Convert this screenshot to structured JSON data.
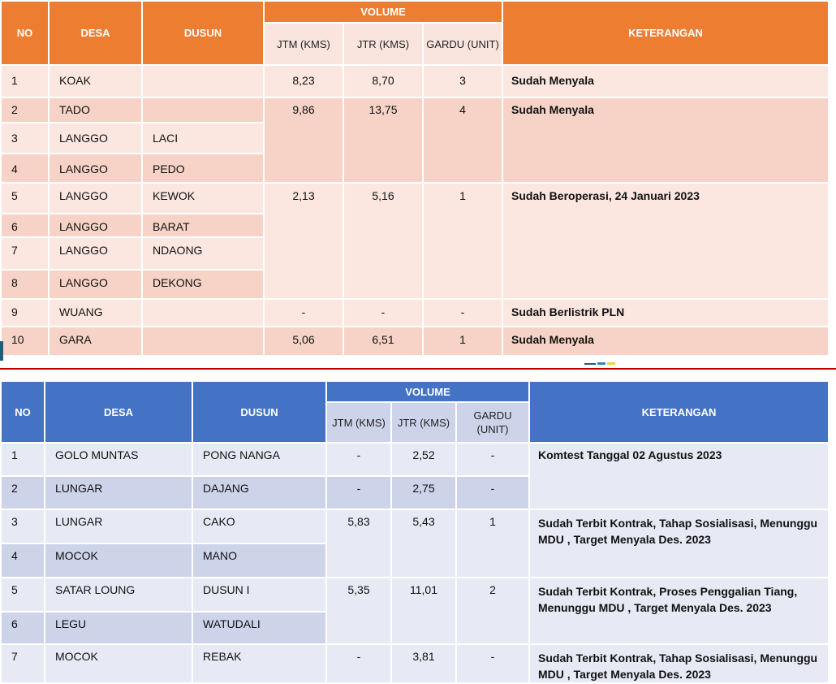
{
  "table1": {
    "headers": {
      "no": "NO",
      "desa": "DESA",
      "dusun": "DUSUN",
      "volume": "VOLUME",
      "jtm": "JTM (KMS)",
      "jtr": "JTR (KMS)",
      "gardu": "GARDU (UNIT)",
      "keterangan": "KETERANGAN"
    },
    "rows": [
      {
        "no": "1",
        "desa": "KOAK",
        "dusun": ""
      },
      {
        "no": "2",
        "desa": "TADO",
        "dusun": ""
      },
      {
        "no": "3",
        "desa": "LANGGO",
        "dusun": "LACI"
      },
      {
        "no": "4",
        "desa": "LANGGO",
        "dusun": "PEDO"
      },
      {
        "no": "5",
        "desa": "LANGGO",
        "dusun": "KEWOK"
      },
      {
        "no": "6",
        "desa": "LANGGO",
        "dusun": "BARAT"
      },
      {
        "no": "7",
        "desa": "LANGGO",
        "dusun": "NDAONG"
      },
      {
        "no": "8",
        "desa": "LANGGO",
        "dusun": "DEKONG"
      },
      {
        "no": "9",
        "desa": "WUANG",
        "dusun": ""
      },
      {
        "no": "10",
        "desa": "GARA",
        "dusun": ""
      }
    ],
    "groups": [
      {
        "jtm": "8,23",
        "jtr": "8,70",
        "gardu": "3",
        "keterangan": "Sudah Menyala"
      },
      {
        "jtm": "9,86",
        "jtr": "13,75",
        "gardu": "4",
        "keterangan": "Sudah Menyala"
      },
      {
        "jtm": "2,13",
        "jtr": "5,16",
        "gardu": "1",
        "keterangan": "Sudah Beroperasi, 24 Januari 2023"
      },
      {
        "jtm": "-",
        "jtr": "-",
        "gardu": "-",
        "keterangan": "Sudah Berlistrik PLN"
      },
      {
        "jtm": "5,06",
        "jtr": "6,51",
        "gardu": "1",
        "keterangan": "Sudah Menyala"
      }
    ]
  },
  "table2": {
    "headers": {
      "no": "NO",
      "desa": "DESA",
      "dusun": "DUSUN",
      "volume": "VOLUME",
      "jtm": "JTM (KMS)",
      "jtr": "JTR (KMS)",
      "gardu": "GARDU (UNIT)",
      "keterangan": "KETERANGAN"
    },
    "rows": [
      {
        "no": "1",
        "desa": "GOLO MUNTAS",
        "dusun": "PONG NANGA",
        "jtm": "-",
        "jtr": "2,52",
        "gardu": "-"
      },
      {
        "no": "2",
        "desa": "LUNGAR",
        "dusun": "DAJANG",
        "jtm": "-",
        "jtr": "2,75",
        "gardu": "-"
      },
      {
        "no": "3",
        "desa": "LUNGAR",
        "dusun": "CAKO"
      },
      {
        "no": "4",
        "desa": "MOCOK",
        "dusun": "MANO"
      },
      {
        "no": "5",
        "desa": "SATAR LOUNG",
        "dusun": "DUSUN I"
      },
      {
        "no": "6",
        "desa": "LEGU",
        "dusun": "WATUDALI"
      },
      {
        "no": "7",
        "desa": "MOCOK",
        "dusun": "REBAK",
        "jtm": "-",
        "jtr": "3,81",
        "gardu": "-"
      }
    ],
    "groups": [
      {
        "keterangan": "Komtest Tanggal 02 Agustus 2023"
      },
      {
        "jtm": "5,83",
        "jtr": "5,43",
        "gardu": "1",
        "keterangan": "Sudah Terbit Kontrak, Tahap Sosialisasi, Menunggu MDU , Target Menyala Des. 2023"
      },
      {
        "jtm": "5,35",
        "jtr": "11,01",
        "gardu": "2",
        "keterangan": "Sudah Terbit Kontrak, Proses Penggalian Tiang, Menunggu MDU , Target Menyala Des. 2023"
      },
      {
        "keterangan": "Sudah Terbit Kontrak, Tahap Sosialisasi, Menunggu MDU , Target Menyala Des. 2023"
      }
    ]
  },
  "colors": {
    "orange_header": "#ED7D31",
    "blue_header": "#4472C4",
    "divider": "#C00000"
  }
}
